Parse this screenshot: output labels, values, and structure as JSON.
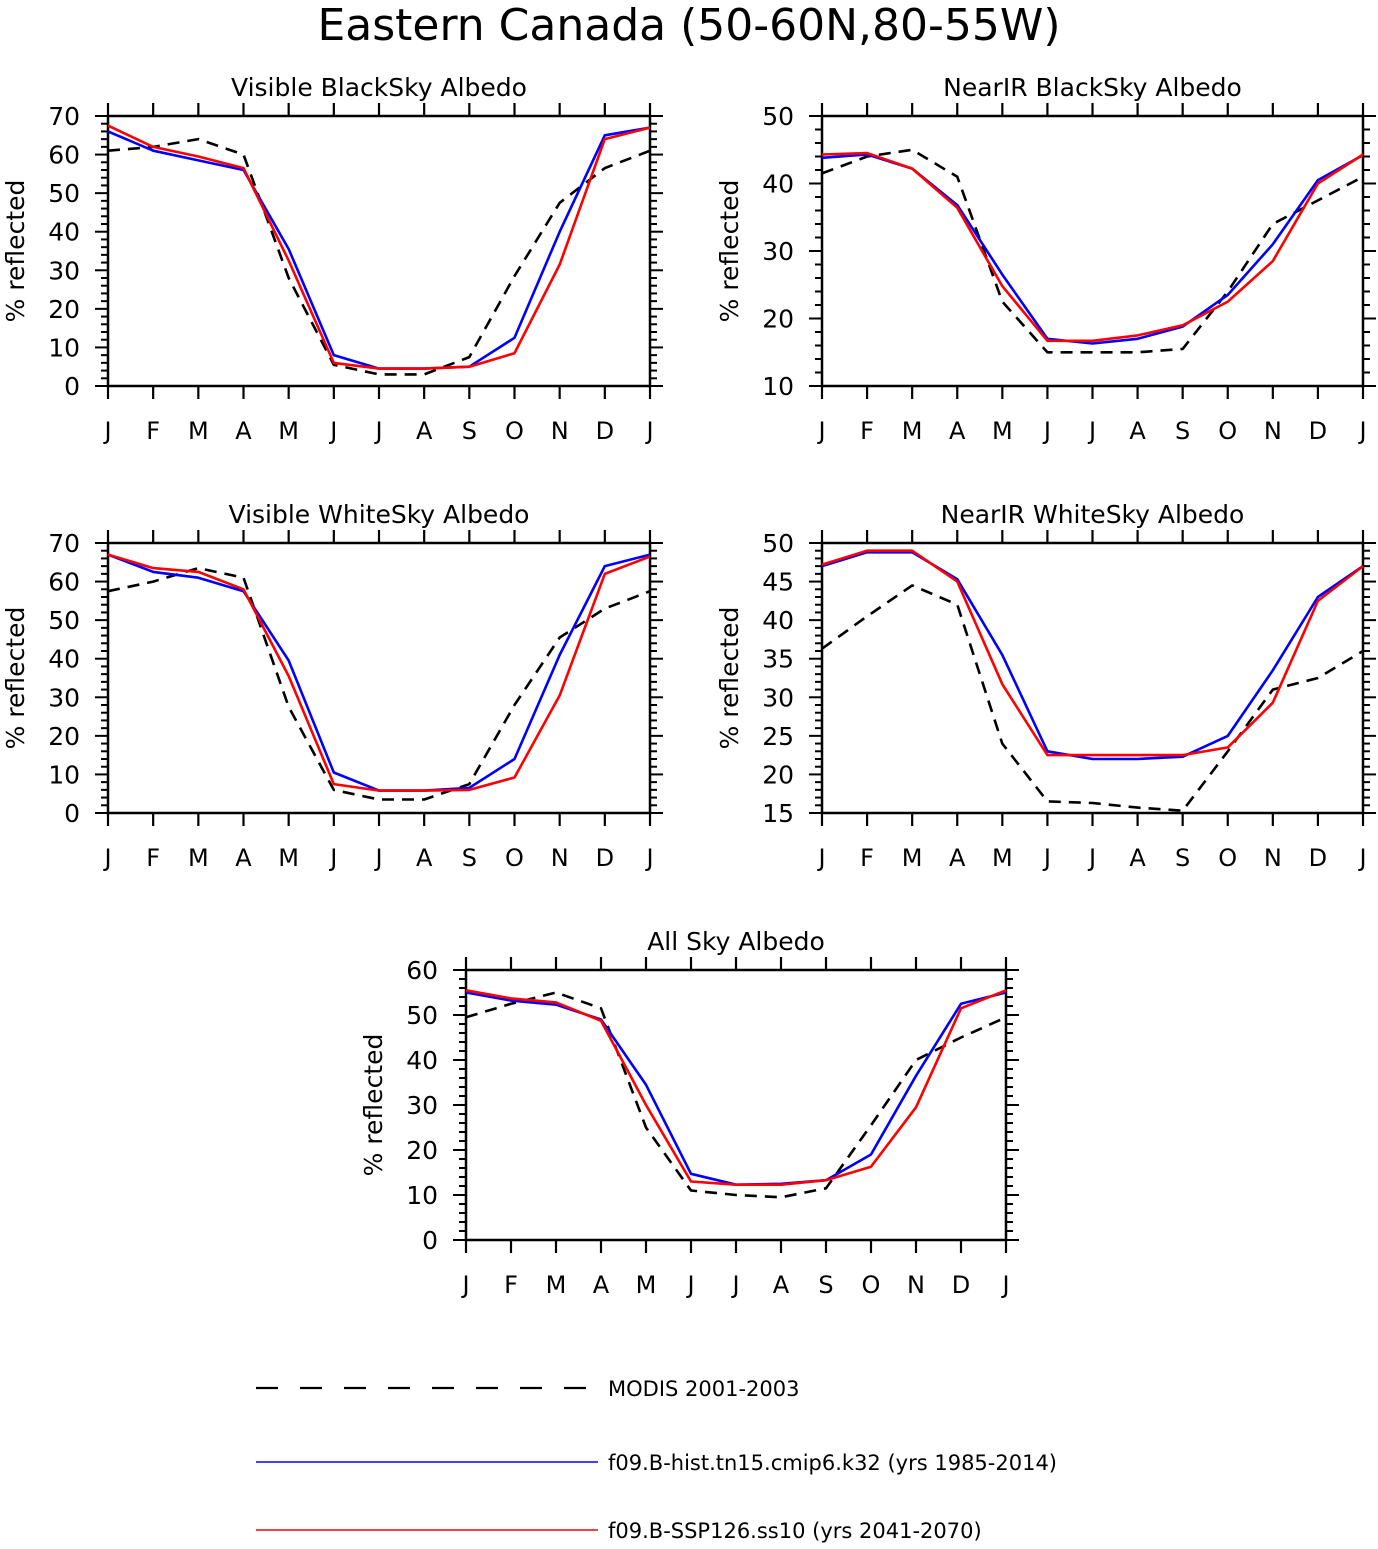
{
  "title": "Eastern Canada (50-60N,80-55W)",
  "month_labels": [
    "J",
    "F",
    "M",
    "A",
    "M",
    "J",
    "J",
    "A",
    "S",
    "O",
    "N",
    "D",
    "J"
  ],
  "legend": {
    "items": [
      {
        "label": "MODIS 2001-2003",
        "color": "#000000",
        "dash": true
      },
      {
        "label": "f09.B-hist.tn15.cmip6.k32 (yrs 1985-2014)",
        "color": "#0000ff",
        "dash": false
      },
      {
        "label": "f09.B-SSP126.ss10 (yrs 2041-2070)",
        "color": "#ff0000",
        "dash": false
      }
    ]
  },
  "chart_data": [
    {
      "type": "line",
      "title": "Visible BlackSky Albedo",
      "ylabel": "% reflected",
      "ylim": [
        0,
        70
      ],
      "yticks": [
        0,
        10,
        20,
        30,
        40,
        50,
        60,
        70
      ],
      "categories": [
        "J",
        "F",
        "M",
        "A",
        "M",
        "J",
        "J",
        "A",
        "S",
        "O",
        "N",
        "D",
        "J"
      ],
      "series": [
        {
          "name": "MODIS 2001-2003",
          "values": [
            61,
            62,
            64,
            60,
            28,
            5.5,
            3,
            3,
            7.5,
            28.5,
            47.5,
            56.5,
            61
          ]
        },
        {
          "name": "f09.B-hist.tn15.cmip6.k32 (yrs 1985-2014)",
          "values": [
            66,
            61,
            58.5,
            56,
            35.5,
            8,
            4.5,
            4.5,
            5,
            12.5,
            40,
            65,
            67
          ]
        },
        {
          "name": "f09.B-SSP126.ss10 (yrs 2041-2070)",
          "values": [
            67.5,
            62,
            59.5,
            56.5,
            32.5,
            6,
            4.5,
            4.5,
            5,
            8.5,
            31.5,
            64,
            67
          ]
        }
      ]
    },
    {
      "type": "line",
      "title": "NearIR BlackSky Albedo",
      "ylabel": "% reflected",
      "ylim": [
        10,
        50
      ],
      "yticks": [
        10,
        20,
        30,
        40,
        50
      ],
      "categories": [
        "J",
        "F",
        "M",
        "A",
        "M",
        "J",
        "J",
        "A",
        "S",
        "O",
        "N",
        "D",
        "J"
      ],
      "series": [
        {
          "name": "MODIS 2001-2003",
          "values": [
            41.5,
            44,
            45,
            41,
            22.5,
            15,
            15,
            15,
            15.5,
            24,
            34,
            37.5,
            41
          ]
        },
        {
          "name": "f09.B-hist.tn15.cmip6.k32 (yrs 1985-2014)",
          "values": [
            43.8,
            44.3,
            42.2,
            36.8,
            26.5,
            17,
            16.3,
            17,
            18.8,
            23.5,
            31,
            40.5,
            44.2
          ]
        },
        {
          "name": "f09.B-SSP126.ss10 (yrs 2041-2070)",
          "values": [
            44.3,
            44.5,
            42.2,
            36.4,
            24.8,
            16.7,
            16.7,
            17.5,
            19,
            22.5,
            28.5,
            40,
            44.3
          ]
        }
      ]
    },
    {
      "type": "line",
      "title": "Visible WhiteSky Albedo",
      "ylabel": "% reflected",
      "ylim": [
        0,
        70
      ],
      "yticks": [
        0,
        10,
        20,
        30,
        40,
        50,
        60,
        70
      ],
      "categories": [
        "J",
        "F",
        "M",
        "A",
        "M",
        "J",
        "J",
        "A",
        "S",
        "O",
        "N",
        "D",
        "J"
      ],
      "series": [
        {
          "name": "MODIS 2001-2003",
          "values": [
            57.5,
            60,
            63.5,
            61,
            27.5,
            6,
            3.5,
            3.5,
            7.5,
            28,
            45.5,
            53,
            57.5
          ]
        },
        {
          "name": "f09.B-hist.tn15.cmip6.k32 (yrs 1985-2014)",
          "values": [
            67,
            62.5,
            61,
            57.5,
            39.5,
            10.5,
            5.8,
            5.8,
            6.5,
            14,
            41,
            64,
            67
          ]
        },
        {
          "name": "f09.B-SSP126.ss10 (yrs 2041-2070)",
          "values": [
            67,
            63.5,
            62.5,
            58,
            35.5,
            7.5,
            5.8,
            5.8,
            6,
            9.2,
            30.5,
            62,
            66.5
          ]
        }
      ]
    },
    {
      "type": "line",
      "title": "NearIR WhiteSky Albedo",
      "ylabel": "% reflected",
      "ylim": [
        15,
        50
      ],
      "yticks": [
        15,
        20,
        25,
        30,
        35,
        40,
        45,
        50
      ],
      "categories": [
        "J",
        "F",
        "M",
        "A",
        "M",
        "J",
        "J",
        "A",
        "S",
        "O",
        "N",
        "D",
        "J"
      ],
      "series": [
        {
          "name": "MODIS 2001-2003",
          "values": [
            36.3,
            40.5,
            44.5,
            42,
            24,
            16.5,
            16.3,
            15.7,
            15.3,
            23,
            31,
            32.5,
            36
          ]
        },
        {
          "name": "f09.B-hist.tn15.cmip6.k32 (yrs 1985-2014)",
          "values": [
            47,
            48.8,
            48.8,
            45.3,
            35.5,
            23,
            22,
            22,
            22.3,
            25,
            33.5,
            43,
            47
          ]
        },
        {
          "name": "f09.B-SSP126.ss10 (yrs 2041-2070)",
          "values": [
            47.2,
            49,
            49,
            45,
            31.7,
            22.5,
            22.5,
            22.5,
            22.5,
            23.5,
            29.3,
            42.5,
            47
          ]
        }
      ]
    },
    {
      "type": "line",
      "title": "All Sky Albedo",
      "ylabel": "% reflected",
      "ylim": [
        0,
        60
      ],
      "yticks": [
        0,
        10,
        20,
        30,
        40,
        50,
        60
      ],
      "categories": [
        "J",
        "F",
        "M",
        "A",
        "M",
        "J",
        "J",
        "A",
        "S",
        "O",
        "N",
        "D",
        "J"
      ],
      "series": [
        {
          "name": "MODIS 2001-2003",
          "values": [
            49.5,
            52.5,
            55,
            51.5,
            25,
            11,
            10,
            9.5,
            11.5,
            25.5,
            40,
            45,
            49.5
          ]
        },
        {
          "name": "f09.B-hist.tn15.cmip6.k32 (yrs 1985-2014)",
          "values": [
            55,
            53.2,
            52.3,
            49,
            34.5,
            14.7,
            12.3,
            12.5,
            13.3,
            19,
            36.5,
            52.5,
            55
          ]
        },
        {
          "name": "f09.B-SSP126.ss10 (yrs 2041-2070)",
          "values": [
            55.5,
            53.7,
            52.8,
            48.7,
            30,
            13,
            12.3,
            12.3,
            13.3,
            16.3,
            29.5,
            51.5,
            55.5
          ]
        }
      ]
    }
  ]
}
